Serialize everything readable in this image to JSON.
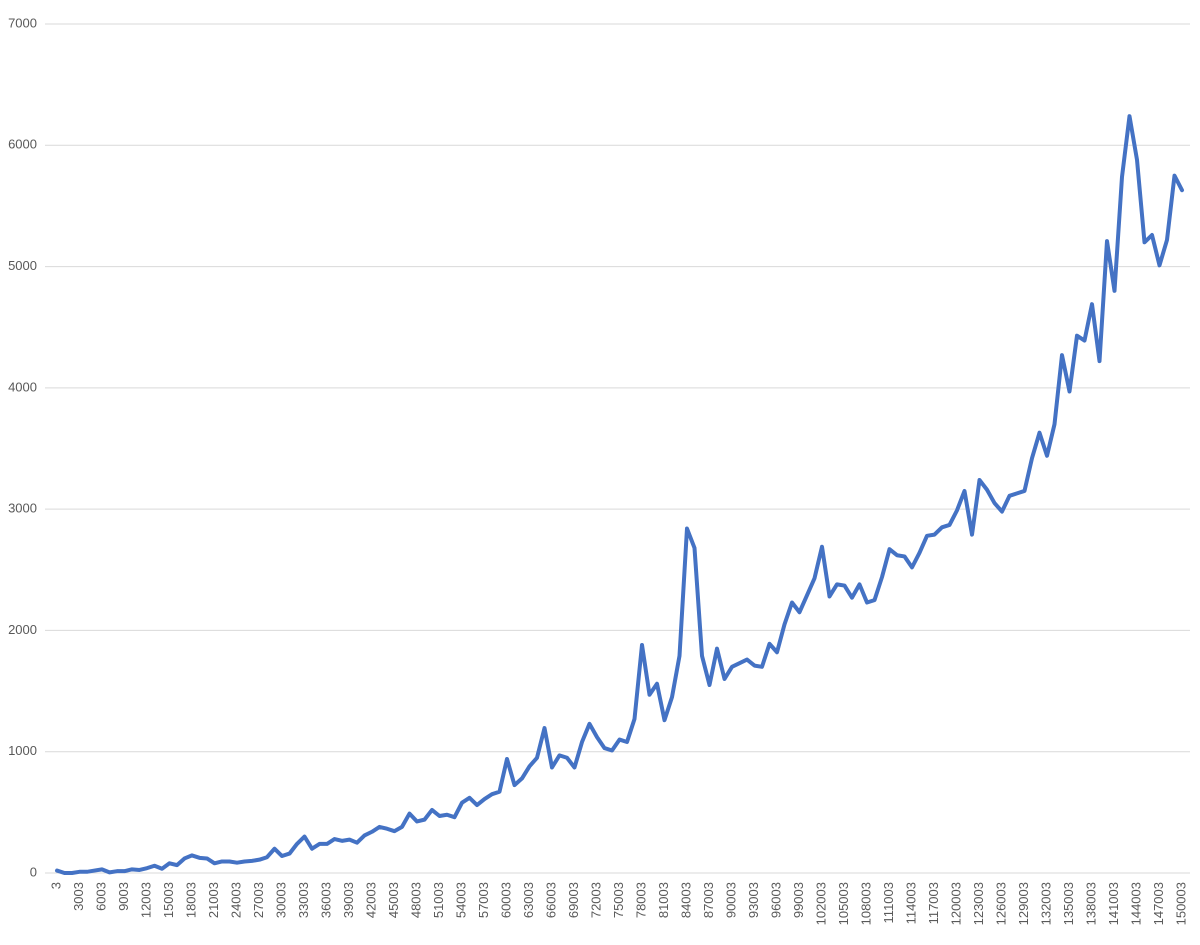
{
  "chart_data": {
    "type": "line",
    "categories": [
      "3",
      null,
      null,
      "3003",
      null,
      null,
      "6003",
      null,
      null,
      "9003",
      null,
      null,
      "12003",
      null,
      null,
      "15003",
      null,
      null,
      "18003",
      null,
      null,
      "21003",
      null,
      null,
      "24003",
      null,
      null,
      "27003",
      null,
      null,
      "30003",
      null,
      null,
      "33003",
      null,
      null,
      "36003",
      null,
      null,
      "39003",
      null,
      null,
      "42003",
      null,
      null,
      "45003",
      null,
      null,
      "48003",
      null,
      null,
      "51003",
      null,
      null,
      "54003",
      null,
      null,
      "57003",
      null,
      null,
      "60003",
      null,
      null,
      "63003",
      null,
      null,
      "66003",
      null,
      null,
      "69003",
      null,
      null,
      "72003",
      null,
      null,
      "75003",
      null,
      null,
      "78003",
      null,
      null,
      "81003",
      null,
      null,
      "84003",
      null,
      null,
      "87003",
      null,
      null,
      "90003",
      null,
      null,
      "93003",
      null,
      null,
      "96003",
      null,
      null,
      "99003",
      null,
      null,
      "102003",
      null,
      null,
      "105003",
      null,
      null,
      "108003",
      null,
      null,
      "111003",
      null,
      null,
      "114003",
      null,
      null,
      "117003",
      null,
      null,
      "120003",
      null,
      null,
      "123003",
      null,
      null,
      "126003",
      null,
      null,
      "129003",
      null,
      null,
      "132003",
      null,
      null,
      "135003",
      null,
      null,
      "138003",
      null,
      null,
      "141003",
      null,
      null,
      "144003",
      null,
      null,
      "147003",
      null,
      null,
      "150003"
    ],
    "values": [
      20,
      0,
      0,
      10,
      10,
      20,
      30,
      5,
      15,
      15,
      30,
      25,
      40,
      60,
      35,
      80,
      65,
      120,
      145,
      125,
      120,
      80,
      95,
      95,
      85,
      95,
      100,
      110,
      130,
      200,
      140,
      160,
      240,
      300,
      200,
      240,
      240,
      280,
      265,
      275,
      250,
      310,
      340,
      380,
      365,
      345,
      380,
      490,
      425,
      440,
      520,
      470,
      480,
      460,
      580,
      620,
      560,
      610,
      650,
      670,
      940,
      725,
      780,
      880,
      950,
      1195,
      870,
      970,
      950,
      870,
      1080,
      1230,
      1120,
      1030,
      1010,
      1100,
      1080,
      1270,
      1880,
      1470,
      1560,
      1260,
      1450,
      1790,
      2840,
      2680,
      1790,
      1550,
      1850,
      1600,
      1700,
      1730,
      1760,
      1710,
      1700,
      1890,
      1820,
      2050,
      2230,
      2150,
      2290,
      2430,
      2690,
      2280,
      2380,
      2370,
      2270,
      2380,
      2230,
      2250,
      2440,
      2670,
      2620,
      2610,
      2520,
      2640,
      2780,
      2790,
      2850,
      2870,
      2990,
      3150,
      2790,
      3240,
      3160,
      3050,
      2980,
      3110,
      3130,
      3150,
      3420,
      3630,
      3440,
      3700,
      4270,
      3970,
      4430,
      4390,
      4690,
      4220,
      5210,
      4800,
      5740,
      6240,
      5880,
      5200,
      5260,
      5010,
      5220,
      5750,
      5630
    ],
    "color": "#4472c4",
    "ylim": [
      0,
      7000
    ],
    "yticks": [
      0,
      1000,
      2000,
      3000,
      4000,
      5000,
      6000,
      7000
    ],
    "grid": true
  }
}
